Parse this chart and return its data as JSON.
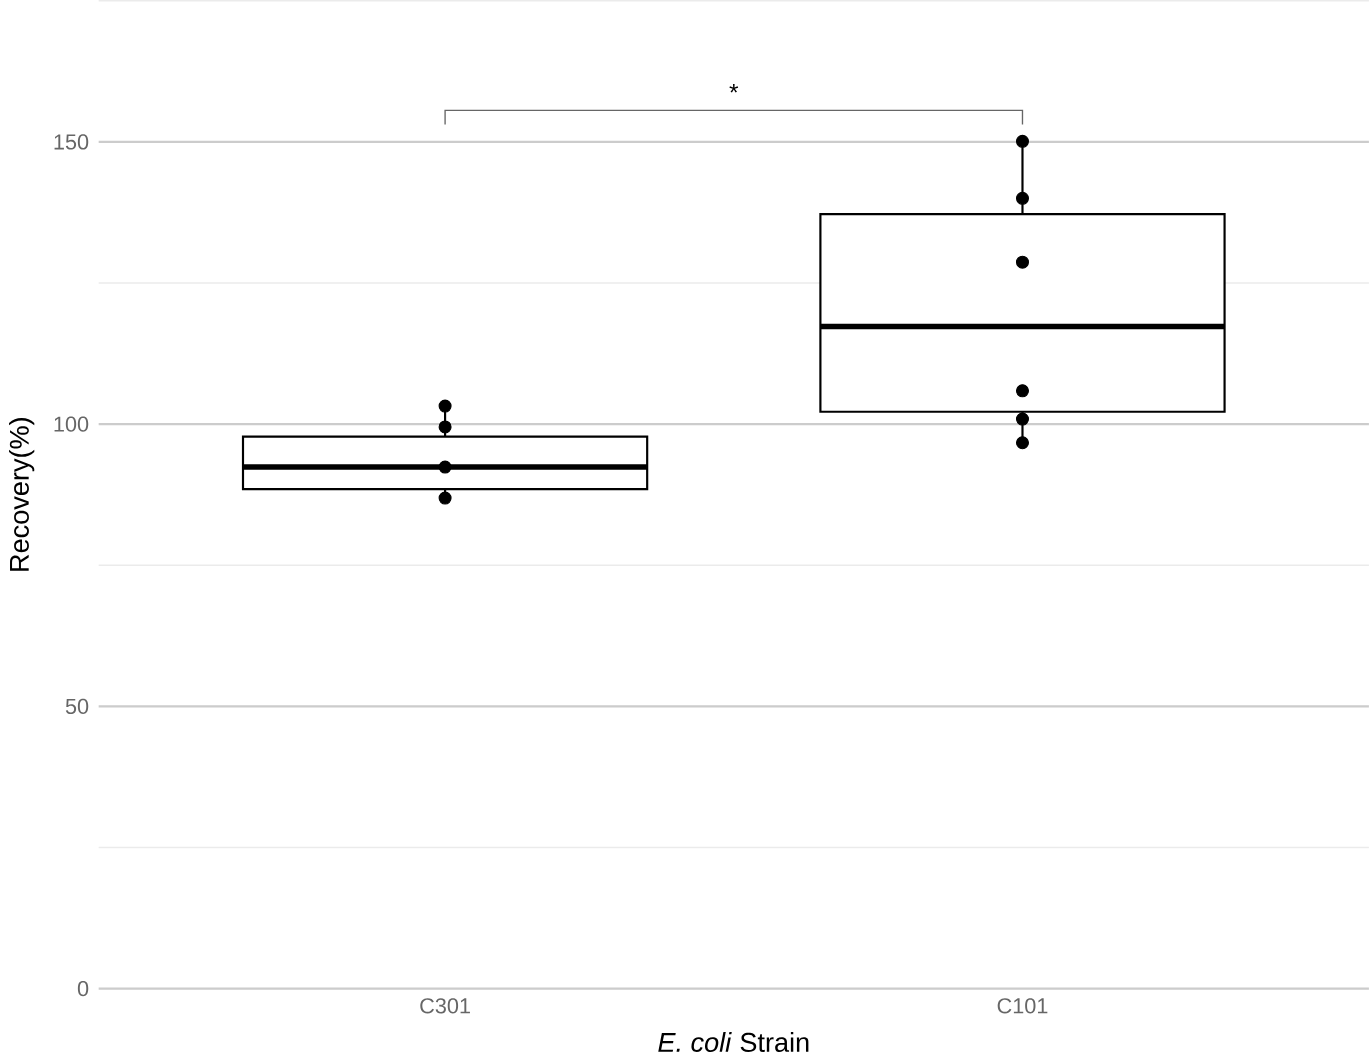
{
  "chart_data": {
    "type": "box",
    "xlabel": "*E. coli* Strain",
    "ylabel": "Recovery(%)",
    "categories": [
      "C301",
      "C101"
    ],
    "boxes": [
      {
        "low": 86.9,
        "q1": 88.5,
        "median": 92.4,
        "q3": 97.8,
        "high": 103.2
      },
      {
        "low": 96.7,
        "q1": 102.2,
        "median": 117.3,
        "q3": 137.2,
        "high": 150.1
      }
    ],
    "series": [
      {
        "type": "scatter",
        "color": "#000000",
        "x": [
          "C301",
          "C301",
          "C301",
          "C301",
          "C101",
          "C101",
          "C101",
          "C101",
          "C101",
          "C101"
        ],
        "values": [
          103.2,
          99.5,
          92.4,
          86.9,
          150.1,
          140.0,
          128.7,
          105.9,
          100.9,
          96.7
        ]
      }
    ],
    "marker": "circle",
    "ylim": [
      0,
      175
    ],
    "yticks": [
      0,
      50,
      100,
      150
    ],
    "grid": "y",
    "annotations": [
      "*"
    ]
  }
}
